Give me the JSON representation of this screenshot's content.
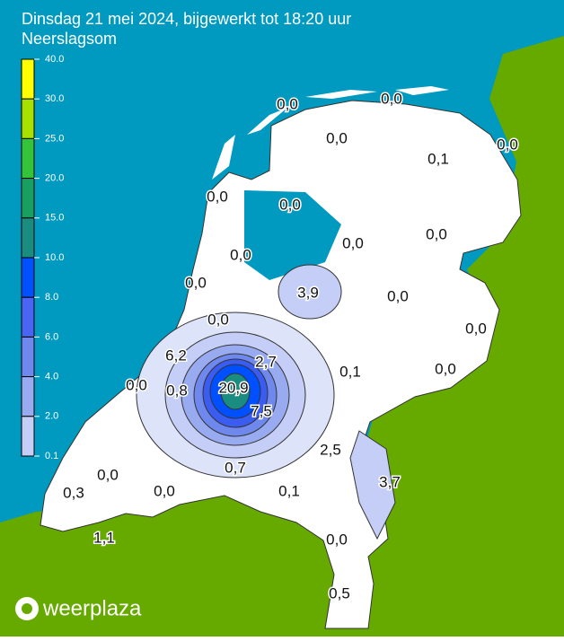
{
  "header": {
    "title": "Dinsdag 21 mei 2024, bijgewerkt tot 18:20 uur",
    "subtitle": "Neerslagsom"
  },
  "legend": {
    "labels": [
      "40.0",
      "30.0",
      "25.0",
      "20.0",
      "15.0",
      "10.0",
      "8.0",
      "6.0",
      "4.0",
      "2.0",
      "0.1"
    ],
    "colors": [
      "#ffff00",
      "#a8e000",
      "#33c43a",
      "#18a060",
      "#1a8c80",
      "#0050ff",
      "#4a64f4",
      "#6e88ee",
      "#98aaf0",
      "#c4cef6"
    ]
  },
  "map": {
    "labels": [
      "0,0",
      "0,0",
      "0,0",
      "0,0",
      "0,1",
      "0,0",
      "0,0",
      "0,0",
      "0,0",
      "0,0",
      "3,9",
      "0,0",
      "0,0",
      "0,0",
      "0,0",
      "6,2",
      "2,7",
      "0,1",
      "0,0",
      "0,0",
      "0,8",
      "20,9",
      "7,5",
      "2,5",
      "0,7",
      "3,7",
      "0,0",
      "0,3",
      "0,0",
      "0,1",
      "0,0",
      "1,1",
      "0,5"
    ]
  },
  "logo": {
    "text": "weerplaza"
  }
}
